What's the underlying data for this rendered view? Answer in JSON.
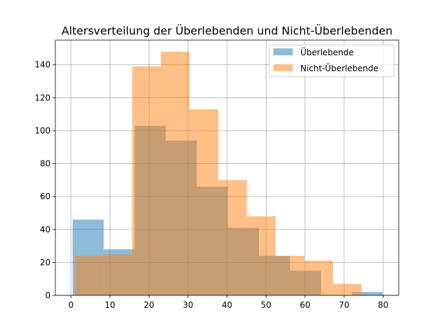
{
  "chart_data": {
    "type": "bar",
    "subtype": "histogram-overlay",
    "title": "Altersverteilung der Überlebenden und Nicht-Überlebenden",
    "xlabel": "",
    "ylabel": "",
    "xlim": [
      -4,
      84
    ],
    "ylim": [
      0,
      155
    ],
    "xticks": [
      0,
      10,
      20,
      30,
      40,
      50,
      60,
      70,
      80
    ],
    "yticks": [
      0,
      20,
      40,
      60,
      80,
      100,
      120,
      140
    ],
    "grid": true,
    "legend_position": "top-right",
    "series": [
      {
        "name": "Überlebende",
        "color": "#1f77b4",
        "opacity": 0.5,
        "bin_edges": [
          0.42,
          8.38,
          16.34,
          24.29,
          32.25,
          40.21,
          48.17,
          56.13,
          64.08,
          72.04,
          80.0
        ],
        "values": [
          46,
          28,
          103,
          94,
          66,
          41,
          24,
          15,
          0,
          2
        ]
      },
      {
        "name": "Nicht-Überlebende",
        "color": "#ff7f0e",
        "opacity": 0.5,
        "bin_edges": [
          1.0,
          8.35,
          15.7,
          23.05,
          30.4,
          37.75,
          45.1,
          52.45,
          59.8,
          67.15,
          74.5
        ],
        "values": [
          24,
          25,
          139,
          148,
          113,
          70,
          48,
          24,
          21,
          7
        ]
      }
    ]
  }
}
